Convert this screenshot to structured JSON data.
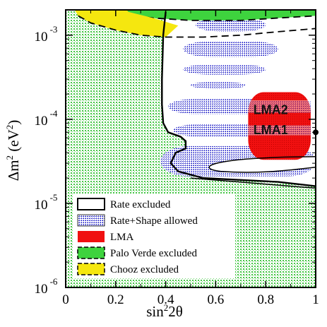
{
  "chart_data": {
    "type": "area",
    "x_axis": {
      "title_base": "sin",
      "title_sup": "2",
      "title_rest": "2θ",
      "ticks": [
        {
          "value": 0,
          "label": "0"
        },
        {
          "value": 0.2,
          "label": "0.2"
        },
        {
          "value": 0.4,
          "label": "0.4"
        },
        {
          "value": 0.6,
          "label": "0.6"
        },
        {
          "value": 0.8,
          "label": "0.8"
        },
        {
          "value": 1,
          "label": "1"
        }
      ],
      "range": [
        0,
        1
      ]
    },
    "y_axis": {
      "title_base": "Δm",
      "title_sup": "2",
      "title_unit_open": " (eV",
      "title_unit_sup": "2",
      "title_unit_close": ")",
      "scale": "log",
      "range": [
        1e-06,
        0.002
      ],
      "ticks": [
        {
          "value": 0.001,
          "base": "10",
          "exp": "-3"
        },
        {
          "value": 0.0001,
          "base": "10",
          "exp": "-4"
        },
        {
          "value": 1e-05,
          "base": "10",
          "exp": "-5"
        },
        {
          "value": 1e-06,
          "base": "10",
          "exp": "-6"
        }
      ]
    },
    "legend": {
      "placement": "bottom-left",
      "entries": [
        {
          "label": "Rate excluded",
          "style": "rate-excluded"
        },
        {
          "label": "Rate+Shape allowed",
          "style": "rate-shape-allowed"
        },
        {
          "label": "LMA",
          "style": "lma"
        },
        {
          "label": "Palo Verde excluded",
          "style": "palo-verde"
        },
        {
          "label": "Chooz excluded",
          "style": "chooz"
        }
      ]
    },
    "annotations": [
      {
        "label": "LMA2",
        "x": 0.82,
        "y": 0.00013
      },
      {
        "label": "LMA1",
        "x": 0.82,
        "y": 7.5e-05
      }
    ],
    "best_fit_point": {
      "x": 1.0,
      "y": 7e-05
    },
    "rate_excluded_boundary": [
      [
        0.4,
        0.0019
      ],
      [
        0.39,
        0.001
      ],
      [
        0.385,
        0.0003
      ],
      [
        0.385,
        0.00015
      ],
      [
        0.39,
        9e-05
      ],
      [
        0.41,
        7e-05
      ],
      [
        0.46,
        6.2e-05
      ],
      [
        0.48,
        5.5e-05
      ],
      [
        0.48,
        4.5e-05
      ],
      [
        0.44,
        4e-05
      ],
      [
        0.42,
        3e-05
      ],
      [
        0.45,
        2.4e-05
      ],
      [
        0.55,
        2e-05
      ],
      [
        0.7,
        1.9e-05
      ],
      [
        0.85,
        1.8e-05
      ],
      [
        1.0,
        1.6e-05
      ]
    ],
    "rate_shape_allowed_bands": [
      {
        "x_min": 0.52,
        "x_max": 0.8,
        "y_min": 0.0011,
        "y_max": 0.0016
      },
      {
        "x_min": 0.47,
        "x_max": 0.85,
        "y_min": 0.00055,
        "y_max": 0.00085
      },
      {
        "x_min": 0.47,
        "x_max": 0.8,
        "y_min": 0.00034,
        "y_max": 0.00045
      },
      {
        "x_min": 0.5,
        "x_max": 0.72,
        "y_min": 0.00023,
        "y_max": 0.00028
      },
      {
        "x_min": 0.41,
        "x_max": 0.98,
        "y_min": 0.000115,
        "y_max": 0.000175
      },
      {
        "x_min": 0.43,
        "x_max": 0.98,
        "y_min": 6.2e-05,
        "y_max": 8.8e-05
      },
      {
        "x_min": 0.38,
        "x_max": 1.0,
        "y_min": 2.1e-05,
        "y_max": 4.8e-05
      }
    ],
    "lma_region": {
      "x_min": 0.73,
      "x_max": 0.98,
      "y_min": 3.3e-05,
      "y_max": 0.00021
    },
    "chooz_excluded_boundary": [
      [
        0.05,
        0.0017
      ],
      [
        0.1,
        0.0014
      ],
      [
        0.2,
        0.00115
      ],
      [
        0.3,
        0.001
      ],
      [
        0.4,
        0.00095
      ],
      [
        0.55,
        0.00095
      ],
      [
        0.7,
        0.001
      ],
      [
        0.85,
        0.0011
      ],
      [
        1.0,
        0.0012
      ]
    ],
    "palo_verde_excluded_boundary": [
      [
        0.1,
        0.002
      ],
      [
        0.2,
        0.0018
      ],
      [
        0.35,
        0.0016
      ],
      [
        0.5,
        0.0015
      ],
      [
        0.7,
        0.0015
      ],
      [
        0.85,
        0.0016
      ],
      [
        1.0,
        0.0017
      ]
    ]
  }
}
